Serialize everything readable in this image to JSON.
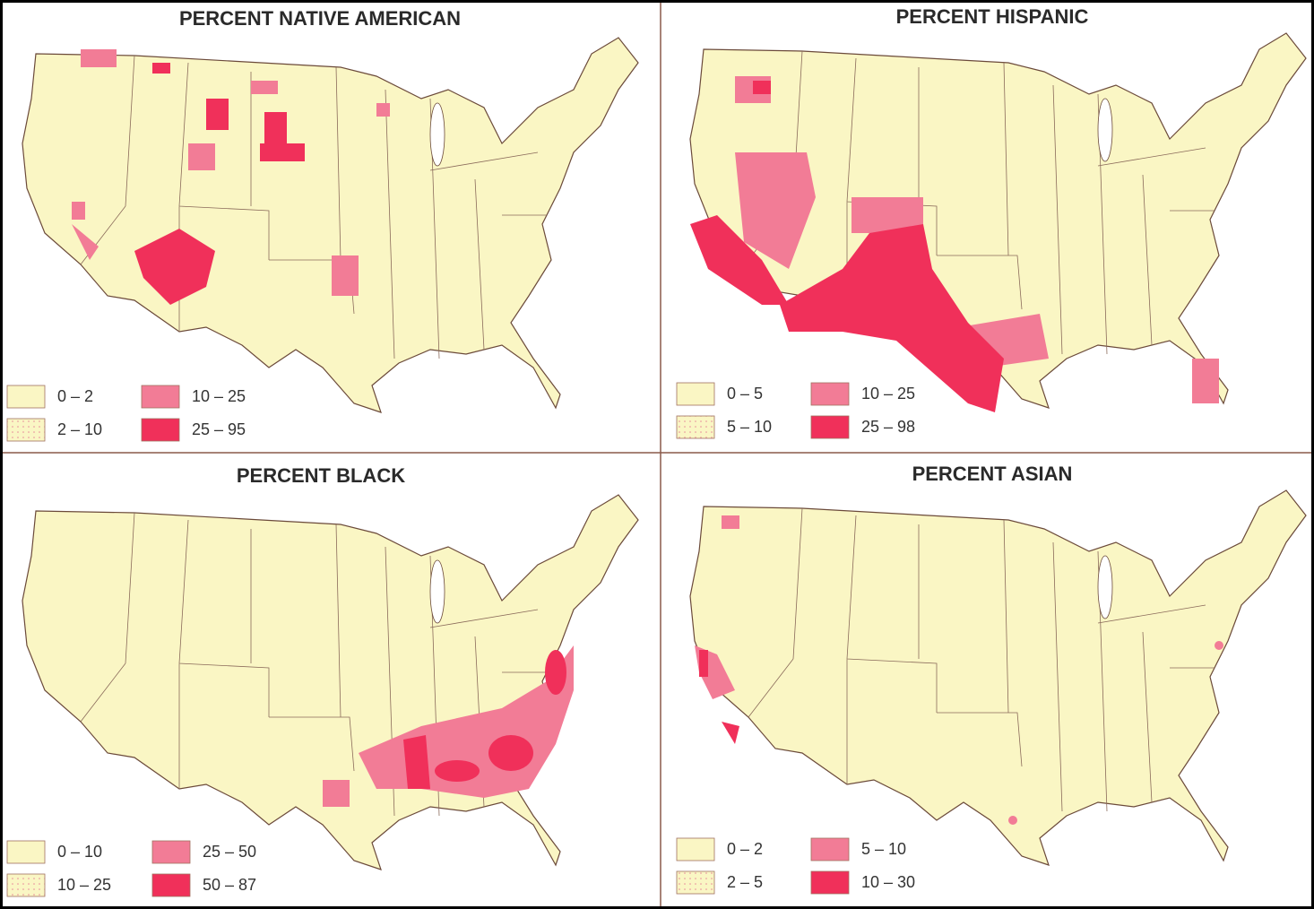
{
  "panels": [
    {
      "title": "PERCENT NATIVE AMERICAN",
      "legend": [
        "0 – 2",
        "2 – 10",
        "10 – 25",
        "25 – 95"
      ]
    },
    {
      "title": "PERCENT HISPANIC",
      "legend": [
        "0 – 5",
        "5 – 10",
        "10 – 25",
        "25 – 98"
      ]
    },
    {
      "title": "PERCENT BLACK",
      "legend": [
        "0 – 10",
        "10 – 25",
        "25 – 50",
        "50 – 87"
      ]
    },
    {
      "title": "PERCENT ASIAN",
      "legend": [
        "0 – 2",
        "2 – 5",
        "5 – 10",
        "10 – 30"
      ]
    }
  ]
}
